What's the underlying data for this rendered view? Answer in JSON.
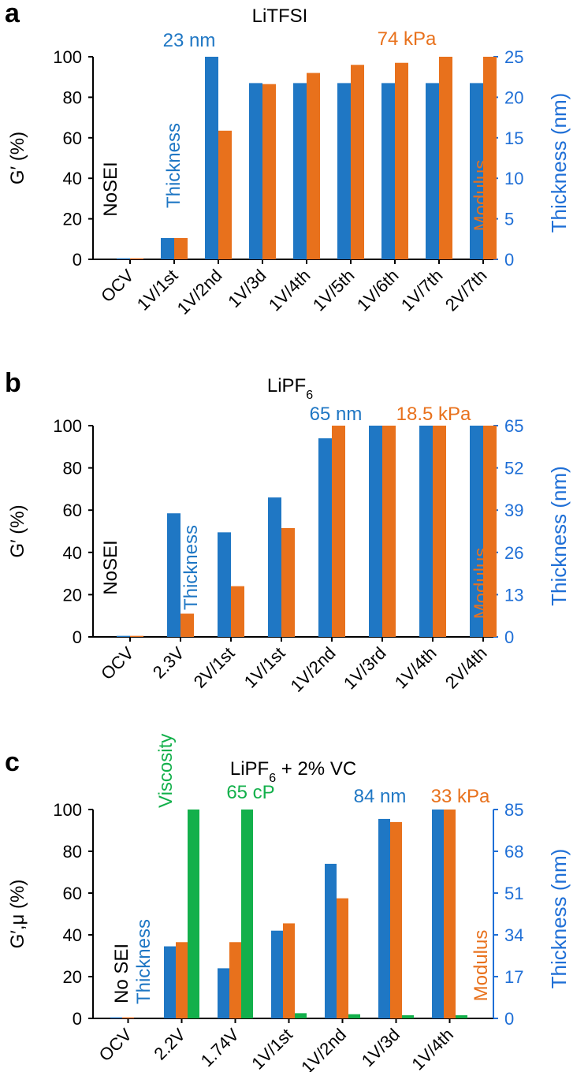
{
  "colors": {
    "thickness": "#1f77c4",
    "modulus": "#e8711c",
    "viscosity": "#13b04b",
    "right_axis": "#1f6fd6",
    "annotation_black": "#000000"
  },
  "chart_data": [
    {
      "letter": "a",
      "type": "bar",
      "title": "LiTFSI",
      "title_sub": "",
      "title_rest": "",
      "ylabel": "G′ (%)",
      "ylabel_sub": "",
      "ylim": [
        0,
        100
      ],
      "yticks": [
        "0",
        "20",
        "40",
        "60",
        "80",
        "100"
      ],
      "right_label": "Thickness (nm)",
      "right_ylim": [
        0,
        25
      ],
      "right_ticks": [
        "0",
        "5",
        "10",
        "15",
        "20",
        "25"
      ],
      "categories": [
        "OCV",
        "1V/1st",
        "1V/2nd",
        "1V/3d",
        "1V/4th",
        "1V/5th",
        "1V/6th",
        "1V/7th",
        "2V/7th"
      ],
      "series": [
        {
          "name": "Thickness",
          "color": "#1f77c4",
          "values": [
            0.5,
            10.5,
            100,
            87,
            87,
            87,
            87,
            87,
            87
          ]
        },
        {
          "name": "Modulus",
          "color": "#e8711c",
          "values": [
            0.5,
            10.5,
            63.5,
            86.5,
            92,
            96,
            97,
            100,
            100
          ]
        }
      ],
      "annotations": [
        {
          "text": "NoSEI",
          "color": "#000000"
        },
        {
          "text": "Thickness",
          "color": "#1f77c4"
        },
        {
          "text": "23 nm",
          "color": "#1f77c4"
        },
        {
          "text": "74 kPa",
          "color": "#e8711c"
        },
        {
          "text": "Modulus",
          "color": "#e8711c"
        }
      ]
    },
    {
      "letter": "b",
      "type": "bar",
      "title": "LiPF",
      "title_sub": "6",
      "title_rest": "",
      "ylabel": "G′ (%)",
      "ylabel_sub": "",
      "ylim": [
        0,
        100
      ],
      "yticks": [
        "0",
        "20",
        "40",
        "60",
        "80",
        "100"
      ],
      "right_label": "Thickness (nm)",
      "right_ylim": [
        0,
        65
      ],
      "right_ticks": [
        "0",
        "13",
        "26",
        "39",
        "52",
        "65"
      ],
      "categories": [
        "OCV",
        "2.3V",
        "2V/1st",
        "1V/1st",
        "1V/2nd",
        "1V/3rd",
        "1V/4th",
        "2V/4th"
      ],
      "series": [
        {
          "name": "Thickness",
          "color": "#1f77c4",
          "values": [
            0.5,
            58.5,
            49.5,
            66,
            94,
            100,
            100,
            100
          ]
        },
        {
          "name": "Modulus",
          "color": "#e8711c",
          "values": [
            0.5,
            11,
            24,
            51.5,
            100,
            100,
            100,
            100
          ]
        }
      ],
      "annotations": [
        {
          "text": "NoSEI",
          "color": "#000000"
        },
        {
          "text": "Thickness",
          "color": "#1f77c4"
        },
        {
          "text": "65 nm",
          "color": "#1f77c4"
        },
        {
          "text": "18.5 kPa",
          "color": "#e8711c"
        },
        {
          "text": "Modulus",
          "color": "#e8711c"
        }
      ]
    },
    {
      "letter": "c",
      "type": "bar",
      "title": "LiPF",
      "title_sub": "6",
      "title_rest": " + 2% VC",
      "ylabel": "G′,μ (%)",
      "ylabel_sub": "",
      "ylim": [
        0,
        100
      ],
      "yticks": [
        "0",
        "20",
        "40",
        "60",
        "80",
        "100"
      ],
      "right_label": "Thickness (nm)",
      "right_ylim": [
        0,
        85
      ],
      "right_ticks": [
        "0",
        "17",
        "34",
        "51",
        "68",
        "85"
      ],
      "categories": [
        "OCV",
        "2.2V",
        "1.74V",
        "1V/1st",
        "1V/2nd",
        "1V/3d",
        "1V/4th"
      ],
      "series": [
        {
          "name": "Thickness",
          "color": "#1f77c4",
          "values": [
            0.5,
            34.5,
            24,
            42,
            74,
            95.5,
            100
          ]
        },
        {
          "name": "Modulus",
          "color": "#e8711c",
          "values": [
            0.5,
            36.5,
            36.5,
            45.5,
            57.5,
            94,
            100
          ]
        },
        {
          "name": "Viscosity",
          "color": "#13b04b",
          "values": [
            0,
            100,
            100,
            2.5,
            2,
            1.5,
            1.5
          ]
        }
      ],
      "annotations": [
        {
          "text": "No SEI",
          "color": "#000000"
        },
        {
          "text": "Thickness",
          "color": "#1f77c4"
        },
        {
          "text": "Viscosity",
          "color": "#13b04b"
        },
        {
          "text": "65 cP",
          "color": "#13b04b"
        },
        {
          "text": "84 nm",
          "color": "#1f77c4"
        },
        {
          "text": "33 kPa",
          "color": "#e8711c"
        },
        {
          "text": "Modulus",
          "color": "#e8711c"
        }
      ]
    }
  ]
}
